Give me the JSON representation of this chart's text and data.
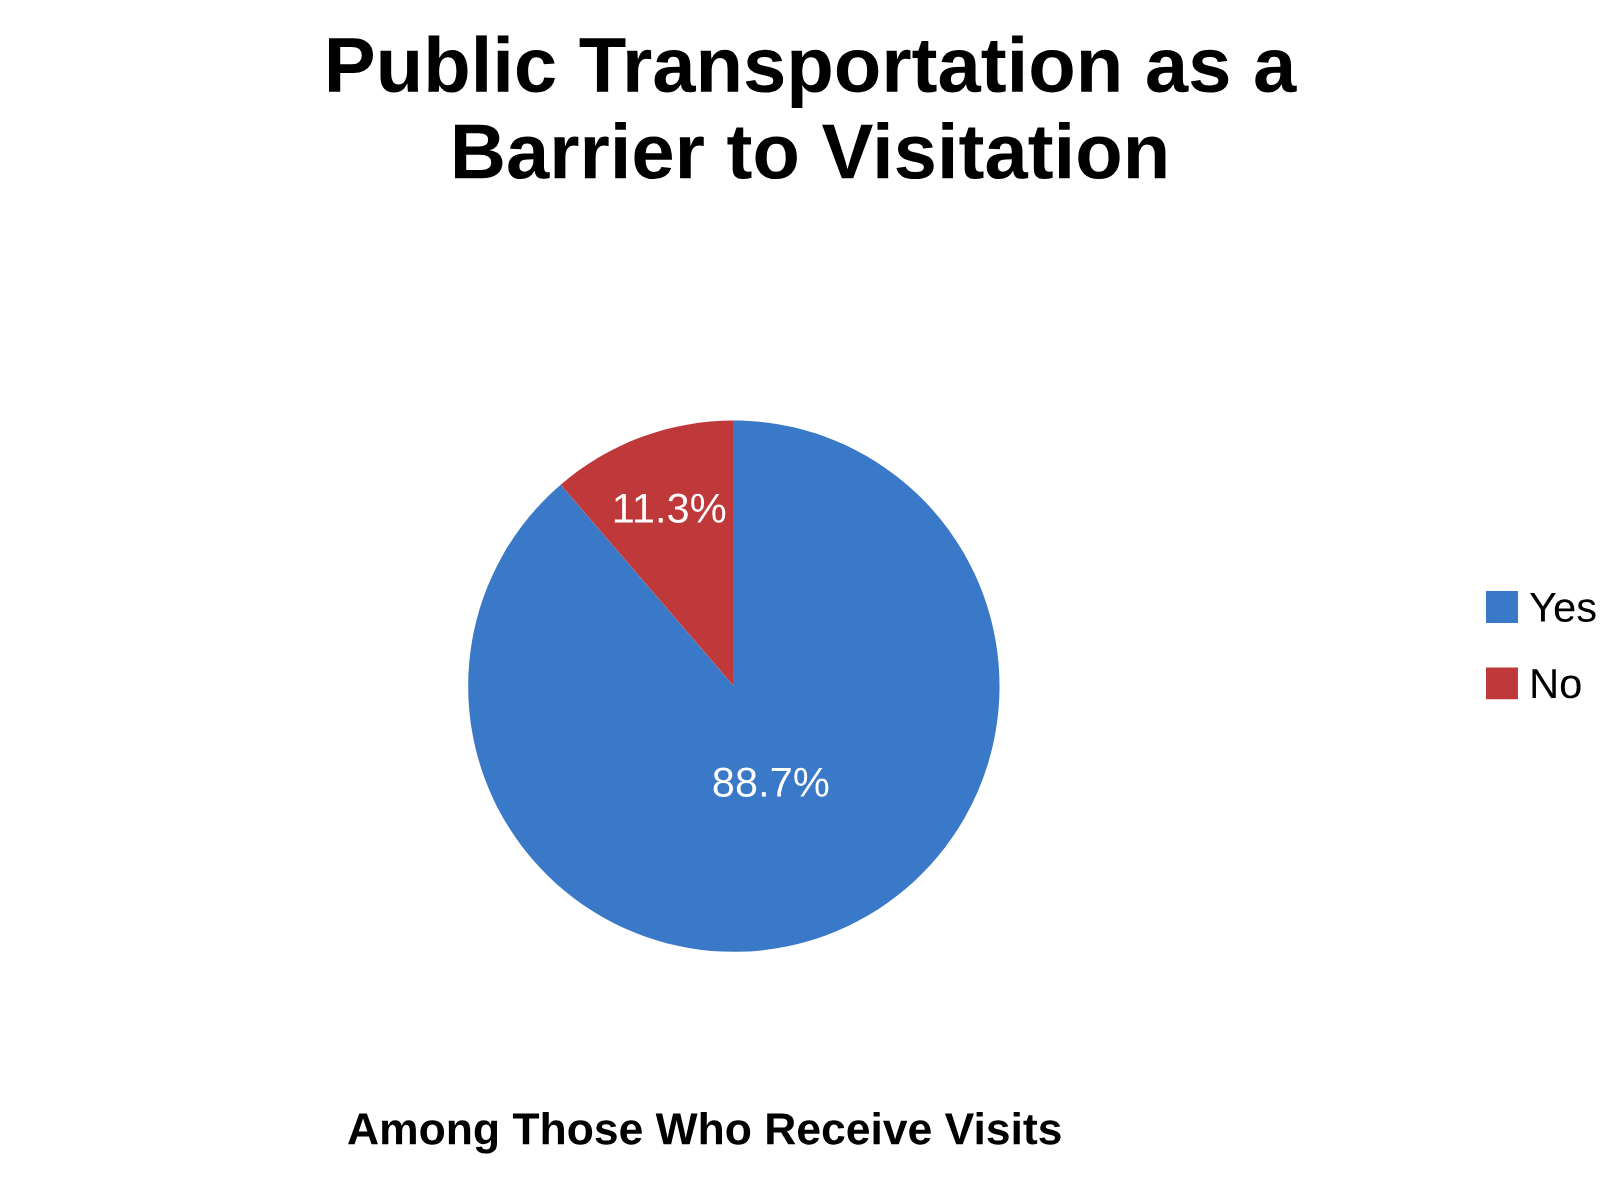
{
  "chart_data": {
    "type": "pie",
    "title": "Public Transportation as a\nBarrier to Visitation",
    "categories": [
      "Yes",
      "No"
    ],
    "values": [
      88.7,
      11.3
    ],
    "colors": [
      "#3a78c8",
      "#c0393a"
    ],
    "value_labels": [
      "88.7%",
      "11.3%"
    ],
    "legend": "right",
    "annotations": [
      "Among Those Who Receive Visits"
    ]
  }
}
